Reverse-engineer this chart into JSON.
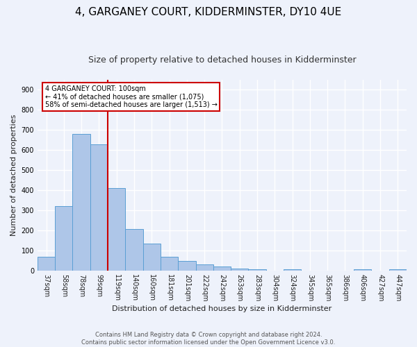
{
  "title": "4, GARGANEY COURT, KIDDERMINSTER, DY10 4UE",
  "subtitle": "Size of property relative to detached houses in Kidderminster",
  "xlabel": "Distribution of detached houses by size in Kidderminster",
  "ylabel": "Number of detached properties",
  "categories": [
    "37sqm",
    "58sqm",
    "78sqm",
    "99sqm",
    "119sqm",
    "140sqm",
    "160sqm",
    "181sqm",
    "201sqm",
    "222sqm",
    "242sqm",
    "263sqm",
    "283sqm",
    "304sqm",
    "324sqm",
    "345sqm",
    "365sqm",
    "386sqm",
    "406sqm",
    "427sqm",
    "447sqm"
  ],
  "values": [
    70,
    320,
    680,
    630,
    410,
    207,
    135,
    68,
    48,
    33,
    22,
    12,
    8,
    0,
    7,
    0,
    0,
    0,
    7,
    0,
    7
  ],
  "bar_color": "#aec6e8",
  "bar_edge_color": "#5a9fd4",
  "property_line_index": 3,
  "property_line_color": "#cc0000",
  "annotation_text": "4 GARGANEY COURT: 100sqm\n← 41% of detached houses are smaller (1,075)\n58% of semi-detached houses are larger (1,513) →",
  "annotation_box_color": "#ffffff",
  "annotation_box_edge_color": "#cc0000",
  "footer_text": "Contains HM Land Registry data © Crown copyright and database right 2024.\nContains public sector information licensed under the Open Government Licence v3.0.",
  "ylim": [
    0,
    950
  ],
  "yticks": [
    0,
    100,
    200,
    300,
    400,
    500,
    600,
    700,
    800,
    900
  ],
  "background_color": "#eef2fb",
  "plot_background_color": "#eef2fb",
  "grid_color": "#ffffff",
  "title_fontsize": 11,
  "subtitle_fontsize": 9,
  "ylabel_fontsize": 8,
  "xlabel_fontsize": 8,
  "tick_fontsize": 7,
  "footer_fontsize": 6
}
